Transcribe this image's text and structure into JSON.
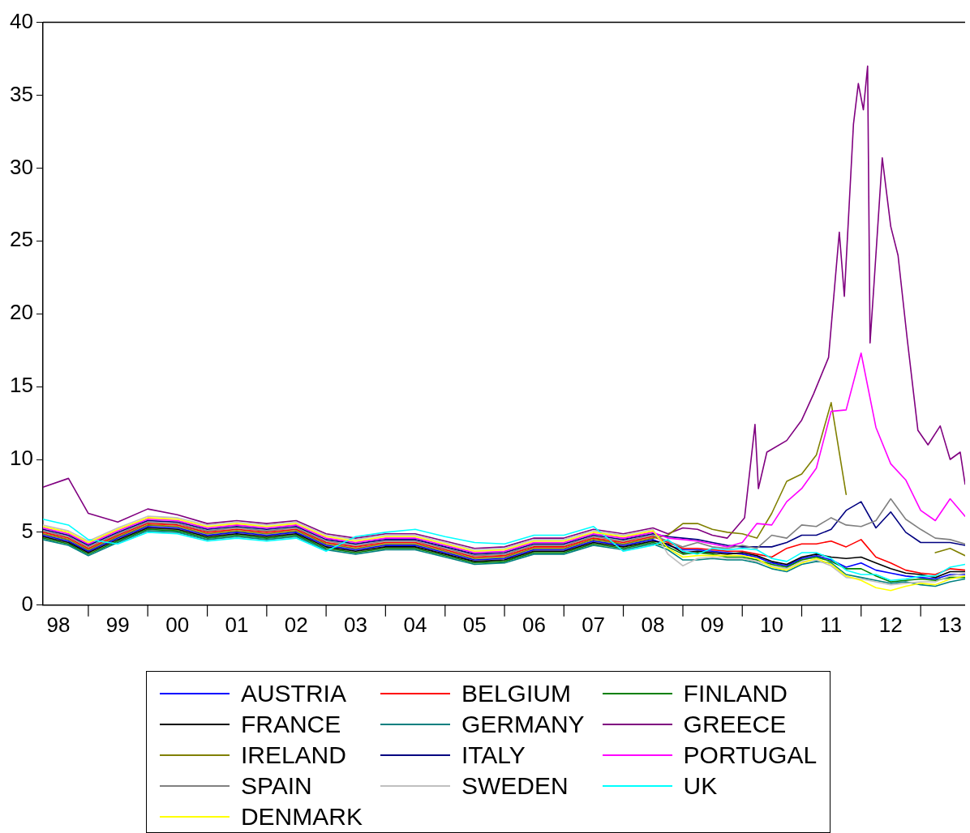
{
  "chart_data": {
    "type": "line",
    "x": [
      "1998-03-28",
      "1998-09-01",
      "1999-01-01",
      "1999-07-01",
      "2000-01-01",
      "2000-07-01",
      "2001-01-01",
      "2001-07-01",
      "2002-01-01",
      "2002-07-01",
      "2003-01-01",
      "2003-07-01",
      "2004-01-01",
      "2004-07-01",
      "2005-01-01",
      "2005-07-01",
      "2006-01-01",
      "2006-07-01",
      "2007-01-01",
      "2007-07-01",
      "2008-01-01",
      "2008-07-01",
      "2008-10-01",
      "2009-01-01",
      "2009-04-01",
      "2009-07-01",
      "2009-10-01",
      "2010-01-01",
      "2010-04-01",
      "2010-07-01",
      "2010-10-01",
      "2011-01-01",
      "2011-04-01",
      "2011-07-01",
      "2011-10-01",
      "2012-01-01",
      "2012-04-01",
      "2012-07-01",
      "2012-10-01",
      "2013-01-01",
      "2013-04-01",
      "2013-07-01",
      "2013-10-01"
    ],
    "series": [
      {
        "name": "AUSTRIA",
        "color": "#0000ff",
        "values": [
          4.8,
          4.4,
          3.7,
          4.6,
          5.4,
          5.3,
          4.8,
          5.0,
          4.8,
          5.0,
          4.1,
          3.8,
          4.1,
          4.1,
          3.6,
          3.1,
          3.2,
          3.8,
          3.8,
          4.4,
          4.1,
          4.5,
          4.1,
          3.8,
          3.8,
          3.7,
          3.6,
          3.5,
          3.3,
          2.9,
          2.7,
          3.2,
          3.4,
          3.1,
          2.6,
          2.9,
          2.4,
          2.2,
          2.0,
          1.9,
          1.8,
          2.1,
          2.1
        ]
      },
      {
        "name": "BELGIUM",
        "color": "#ff0000",
        "values": [
          5.0,
          4.6,
          3.9,
          4.8,
          5.6,
          5.5,
          5.0,
          5.2,
          5.0,
          5.2,
          4.3,
          4.0,
          4.3,
          4.3,
          3.8,
          3.3,
          3.4,
          4.0,
          4.0,
          4.6,
          4.3,
          4.7,
          4.3,
          3.9,
          3.9,
          3.8,
          3.7,
          3.7,
          3.5,
          3.3,
          3.9,
          4.2,
          4.2,
          4.4,
          4.0,
          4.5,
          3.3,
          2.9,
          2.4,
          2.2,
          2.1,
          2.5,
          2.4
        ]
      },
      {
        "name": "FINLAND",
        "color": "#008000",
        "values": [
          4.6,
          4.2,
          3.5,
          4.4,
          5.2,
          5.1,
          4.6,
          4.8,
          4.6,
          4.8,
          3.9,
          3.6,
          3.9,
          3.9,
          3.4,
          2.9,
          3.0,
          3.6,
          3.6,
          4.2,
          3.9,
          4.3,
          4.0,
          3.5,
          3.6,
          3.5,
          3.3,
          3.3,
          3.1,
          2.8,
          2.6,
          3.1,
          3.3,
          3.0,
          2.5,
          2.5,
          2.0,
          1.6,
          1.7,
          1.8,
          1.7,
          1.9,
          1.9
        ]
      },
      {
        "name": "FRANCE",
        "color": "#000000",
        "values": [
          4.7,
          4.3,
          3.6,
          4.5,
          5.3,
          5.2,
          4.7,
          4.9,
          4.7,
          4.9,
          4.0,
          3.7,
          4.0,
          4.0,
          3.5,
          3.0,
          3.1,
          3.7,
          3.7,
          4.3,
          4.0,
          4.4,
          4.2,
          3.6,
          3.7,
          3.6,
          3.5,
          3.6,
          3.4,
          3.0,
          2.8,
          3.3,
          3.5,
          3.3,
          3.2,
          3.3,
          2.9,
          2.5,
          2.2,
          2.1,
          1.9,
          2.3,
          2.3
        ]
      },
      {
        "name": "GERMANY",
        "color": "#008080",
        "values": [
          4.5,
          4.1,
          3.4,
          4.3,
          5.1,
          5.0,
          4.5,
          4.7,
          4.5,
          4.7,
          3.8,
          3.5,
          3.8,
          3.8,
          3.3,
          2.8,
          2.9,
          3.5,
          3.5,
          4.1,
          3.8,
          4.2,
          3.8,
          3.1,
          3.1,
          3.2,
          3.1,
          3.1,
          2.9,
          2.5,
          2.3,
          2.8,
          3.0,
          2.9,
          2.1,
          1.9,
          1.7,
          1.5,
          1.6,
          1.4,
          1.3,
          1.6,
          1.8
        ]
      },
      {
        "name": "GREECE",
        "color": "#800080",
        "x": [
          "1998-03-28",
          "1998-09-01",
          "1999-01-01",
          "1999-07-01",
          "2000-01-01",
          "2000-07-01",
          "2001-01-01",
          "2001-07-01",
          "2002-01-01",
          "2002-07-01",
          "2003-01-01",
          "2003-07-01",
          "2004-01-01",
          "2004-07-01",
          "2005-01-01",
          "2005-07-01",
          "2006-01-01",
          "2006-07-01",
          "2007-01-01",
          "2007-07-01",
          "2008-01-01",
          "2008-07-01",
          "2008-10-01",
          "2009-01-01",
          "2009-04-01",
          "2009-07-01",
          "2009-10-01",
          "2010-01-15",
          "2010-03-20",
          "2010-04-10",
          "2010-06-01",
          "2010-10-01",
          "2011-01-01",
          "2011-03-15",
          "2011-06-15",
          "2011-08-20",
          "2011-09-20",
          "2011-11-15",
          "2011-12-15",
          "2012-01-15",
          "2012-02-10",
          "2012-02-25",
          "2012-03-20",
          "2012-05-10",
          "2012-07-01",
          "2012-08-15",
          "2012-10-10",
          "2012-12-15",
          "2013-02-15",
          "2013-05-01",
          "2013-07-01",
          "2013-09-01",
          "2013-10-01"
        ],
        "values": [
          8.1,
          8.7,
          6.3,
          5.7,
          6.6,
          6.2,
          5.6,
          5.8,
          5.6,
          5.8,
          4.9,
          4.6,
          4.9,
          4.9,
          4.4,
          3.9,
          4.0,
          4.6,
          4.6,
          5.2,
          4.9,
          5.3,
          4.9,
          5.3,
          5.2,
          4.8,
          4.6,
          6.0,
          12.4,
          8.0,
          10.5,
          11.3,
          12.7,
          14.5,
          17.0,
          25.6,
          21.2,
          33.0,
          35.8,
          34.0,
          37.0,
          18.0,
          22.0,
          30.7,
          26.0,
          24.0,
          18.3,
          12.0,
          11.0,
          12.3,
          10.0,
          10.5,
          8.3
        ]
      },
      {
        "name": "IRELAND",
        "color": "#808000",
        "values": [
          4.9,
          4.5,
          3.8,
          4.7,
          5.5,
          5.4,
          4.9,
          5.1,
          4.9,
          5.1,
          4.2,
          3.9,
          4.2,
          4.2,
          3.7,
          3.2,
          3.3,
          3.9,
          3.9,
          4.5,
          4.2,
          4.6,
          4.8,
          5.6,
          5.6,
          5.2,
          5.0,
          4.9,
          4.6,
          6.3,
          8.5,
          9.0,
          10.3,
          13.9,
          7.6,
          null,
          null,
          null,
          null,
          null,
          3.6,
          3.9,
          3.4
        ]
      },
      {
        "name": "ITALY",
        "color": "#000080",
        "values": [
          5.2,
          4.8,
          4.1,
          5.0,
          5.8,
          5.7,
          5.2,
          5.4,
          5.2,
          5.4,
          4.5,
          4.2,
          4.5,
          4.5,
          4.0,
          3.5,
          3.6,
          4.2,
          4.2,
          4.8,
          4.5,
          4.9,
          4.7,
          4.6,
          4.5,
          4.3,
          4.1,
          4.0,
          4.0,
          4.0,
          4.3,
          4.8,
          4.8,
          5.2,
          6.5,
          7.1,
          5.3,
          6.4,
          5.0,
          4.3,
          4.3,
          4.3,
          4.1
        ]
      },
      {
        "name": "PORTUGAL",
        "color": "#ff00ff",
        "values": [
          5.3,
          4.9,
          4.2,
          5.1,
          5.9,
          5.8,
          5.3,
          5.5,
          5.3,
          5.5,
          4.6,
          4.3,
          4.6,
          4.6,
          4.1,
          3.6,
          3.7,
          4.3,
          4.3,
          4.9,
          4.6,
          5.0,
          4.6,
          4.5,
          4.4,
          4.2,
          4.0,
          4.3,
          5.6,
          5.5,
          7.1,
          8.0,
          9.4,
          13.3,
          13.4,
          17.3,
          12.2,
          9.7,
          8.6,
          6.5,
          5.8,
          7.3,
          6.1
        ]
      },
      {
        "name": "SPAIN",
        "color": "#808080",
        "values": [
          5.1,
          4.7,
          4.0,
          4.9,
          5.7,
          5.6,
          5.1,
          5.3,
          5.1,
          5.3,
          4.4,
          4.1,
          4.4,
          4.4,
          3.9,
          3.4,
          3.5,
          4.1,
          4.1,
          4.7,
          4.4,
          4.8,
          4.4,
          4.0,
          4.3,
          4.0,
          3.9,
          4.1,
          3.9,
          4.8,
          4.6,
          5.5,
          5.4,
          6.0,
          5.5,
          5.4,
          5.8,
          7.3,
          5.9,
          5.2,
          4.6,
          4.5,
          4.2
        ]
      },
      {
        "name": "SWEDEN",
        "color": "#c0c0c0",
        "values": [
          5.5,
          5.1,
          4.4,
          5.3,
          6.1,
          6.0,
          5.5,
          5.7,
          5.5,
          5.7,
          4.8,
          4.5,
          4.8,
          4.8,
          4.3,
          3.8,
          3.9,
          4.5,
          4.5,
          5.1,
          4.8,
          5.2,
          3.5,
          2.7,
          3.2,
          3.3,
          3.2,
          3.2,
          3.0,
          2.7,
          2.5,
          3.0,
          3.1,
          2.7,
          1.9,
          1.8,
          1.6,
          1.4,
          1.5,
          1.6,
          1.6,
          2.0,
          2.2
        ]
      },
      {
        "name": "UK",
        "color": "#00ffff",
        "values": [
          5.9,
          5.5,
          4.5,
          4.2,
          5.0,
          4.9,
          4.4,
          4.6,
          4.4,
          4.6,
          3.7,
          4.7,
          5.0,
          5.2,
          4.7,
          4.3,
          4.2,
          4.8,
          4.8,
          5.4,
          3.7,
          4.1,
          4.5,
          3.7,
          3.5,
          3.9,
          3.8,
          3.9,
          3.8,
          3.2,
          3.0,
          3.6,
          3.6,
          3.2,
          2.4,
          2.1,
          2.1,
          1.7,
          1.8,
          2.0,
          2.0,
          2.6,
          2.8
        ]
      },
      {
        "name": "DENMARK",
        "color": "#ffff00",
        "values": [
          5.4,
          5.0,
          4.3,
          5.2,
          6.0,
          5.9,
          5.4,
          5.6,
          5.4,
          5.6,
          4.7,
          4.4,
          4.7,
          4.7,
          4.2,
          3.7,
          3.8,
          4.4,
          4.4,
          5.0,
          4.7,
          5.1,
          3.9,
          3.3,
          3.4,
          3.4,
          3.4,
          3.4,
          3.2,
          2.6,
          2.4,
          2.9,
          3.2,
          2.8,
          2.0,
          1.7,
          1.2,
          1.0,
          1.3,
          1.5,
          1.4,
          1.8,
          2.0
        ]
      }
    ],
    "xlim": [
      "1998-03-28",
      "2013-10-01"
    ],
    "xticks": [
      {
        "value": "1998-07-01",
        "label": "98"
      },
      {
        "value": "1999-01-01",
        "label": null
      },
      {
        "value": "1999-07-01",
        "label": "99"
      },
      {
        "value": "2000-01-01",
        "label": null
      },
      {
        "value": "2000-07-01",
        "label": "00"
      },
      {
        "value": "2001-01-01",
        "label": null
      },
      {
        "value": "2001-07-01",
        "label": "01"
      },
      {
        "value": "2002-01-01",
        "label": null
      },
      {
        "value": "2002-07-01",
        "label": "02"
      },
      {
        "value": "2003-01-01",
        "label": null
      },
      {
        "value": "2003-07-01",
        "label": "03"
      },
      {
        "value": "2004-01-01",
        "label": null
      },
      {
        "value": "2004-07-01",
        "label": "04"
      },
      {
        "value": "2005-01-01",
        "label": null
      },
      {
        "value": "2005-07-01",
        "label": "05"
      },
      {
        "value": "2006-01-01",
        "label": null
      },
      {
        "value": "2006-07-01",
        "label": "06"
      },
      {
        "value": "2007-01-01",
        "label": null
      },
      {
        "value": "2007-07-01",
        "label": "07"
      },
      {
        "value": "2008-01-01",
        "label": null
      },
      {
        "value": "2008-07-01",
        "label": "08"
      },
      {
        "value": "2009-01-01",
        "label": null
      },
      {
        "value": "2009-07-01",
        "label": "09"
      },
      {
        "value": "2010-01-01",
        "label": null
      },
      {
        "value": "2010-07-01",
        "label": "10"
      },
      {
        "value": "2011-01-01",
        "label": null
      },
      {
        "value": "2011-07-01",
        "label": "11"
      },
      {
        "value": "2012-01-01",
        "label": null
      },
      {
        "value": "2012-07-01",
        "label": "12"
      },
      {
        "value": "2013-01-01",
        "label": null
      },
      {
        "value": "2013-07-01",
        "label": "13"
      }
    ],
    "ylim": [
      0,
      40
    ],
    "yticks": [
      0,
      5,
      10,
      15,
      20,
      25,
      30,
      35,
      40
    ],
    "grid": false,
    "legend": "bottom"
  }
}
